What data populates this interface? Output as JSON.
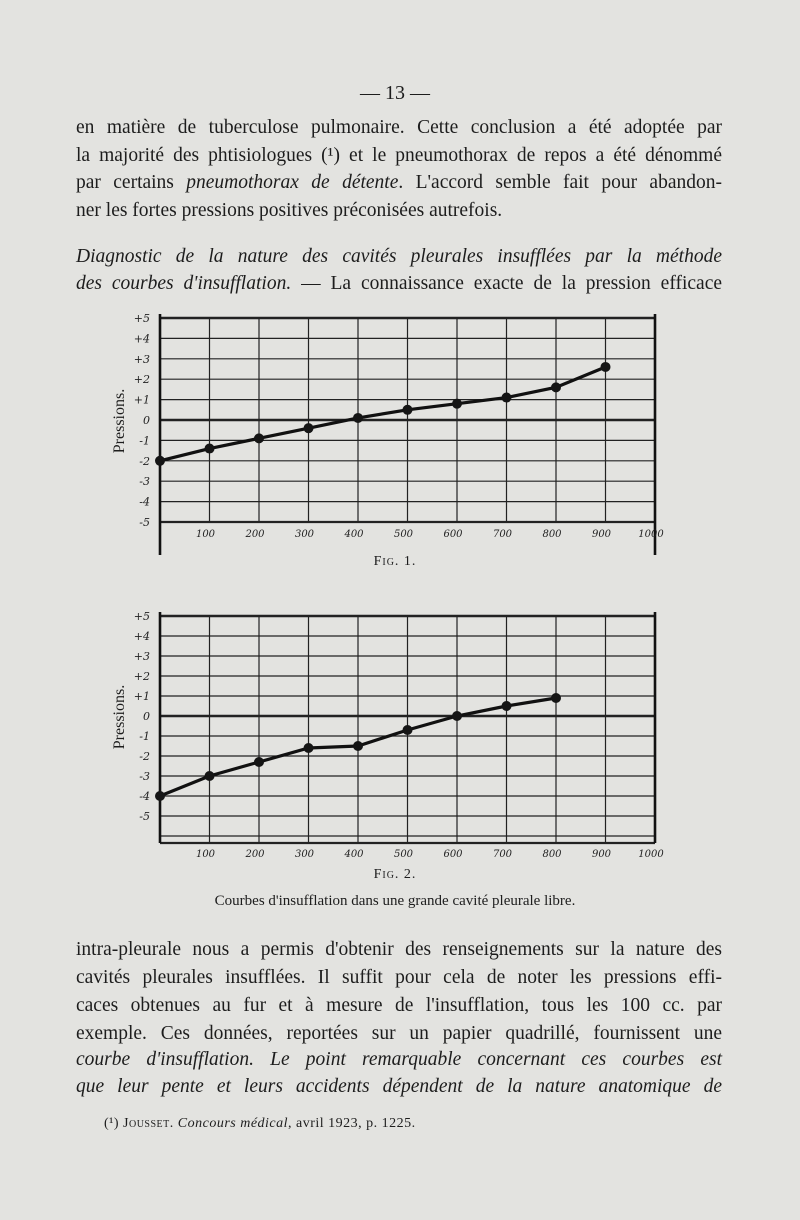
{
  "page_number": "— 13 —",
  "paragraph1": [
    "en matière de tuberculose pulmonaire. Cette conclusion a été adoptée par",
    "la majorité des phtisiologues (¹) et le pneumothorax de repos a été dénommé",
    [
      "par certains ",
      "pneumothorax de détente",
      ". L'accord semble fait pour abandon-"
    ],
    "ner les fortes pressions positives préconisées autrefois."
  ],
  "paragraph2": [
    [
      "Diagnostic de la nature des cavités pleurales insufflées par la méthode",
      ""
    ],
    [
      "des courbes d'insufflation.",
      " — La connaissance exacte de la pression efficace"
    ]
  ],
  "paragraph3": [
    "intra-pleurale nous a permis d'obtenir des renseignements sur la nature des",
    "cavités pleurales insufflées. Il suffit pour cela de noter les pressions effi-",
    "caces obtenues au fur et à mesure de l'insufflation, tous les 100 cc. par",
    "exemple. Ces données, reportées sur un papier quadrillé, fournissent une",
    [
      "courbe d'insufflation. Le point remarquable concernant ces courbes est",
      ""
    ],
    [
      "que leur pente et leurs accidents dépendent de la nature anatomique de",
      ""
    ]
  ],
  "caption": "Courbes d'insufflation dans une grande cavité pleurale libre.",
  "footnote": {
    "mark": "(¹)",
    "author": "Jousset.",
    "journal": "Concours médical",
    "rest": ", avril 1923, p. 1225."
  },
  "chart_data": [
    {
      "type": "line",
      "figure_label": "Fig. 1.",
      "ylabel": "Pressions.",
      "xlabel": "",
      "ytick_labels": [
        "+5",
        "+4",
        "+3",
        "+2",
        "+1",
        "0",
        "-1",
        "-2",
        "-3",
        "-4",
        "-5"
      ],
      "xtick_labels": [
        "100",
        "200",
        "300",
        "400",
        "500",
        "600",
        "700",
        "800",
        "900",
        "1000"
      ],
      "xlim": [
        0,
        1000
      ],
      "ylim": [
        -5,
        5
      ],
      "grid": true,
      "x": [
        0,
        100,
        200,
        300,
        400,
        500,
        600,
        700,
        800,
        900
      ],
      "y": [
        -2,
        -1.4,
        -0.9,
        -0.4,
        0.1,
        0.5,
        0.8,
        1.1,
        1.6,
        2.6
      ]
    },
    {
      "type": "line",
      "figure_label": "Fig. 2.",
      "ylabel": "Pressions.",
      "xlabel": "",
      "ytick_labels": [
        "+5",
        "+4",
        "+3",
        "+2",
        "+1",
        "0",
        "-1",
        "-2",
        "-3",
        "-4",
        "-5"
      ],
      "xtick_labels": [
        "100",
        "200",
        "300",
        "400",
        "500",
        "600",
        "700",
        "800",
        "900",
        "1000"
      ],
      "xlim": [
        0,
        1000
      ],
      "ylim": [
        -6.2,
        5
      ],
      "grid": true,
      "x": [
        0,
        100,
        200,
        300,
        400,
        500,
        600,
        700,
        800
      ],
      "y": [
        -4,
        -3,
        -2.3,
        -1.6,
        -1.5,
        -0.7,
        0,
        0.5,
        0.9
      ]
    }
  ]
}
